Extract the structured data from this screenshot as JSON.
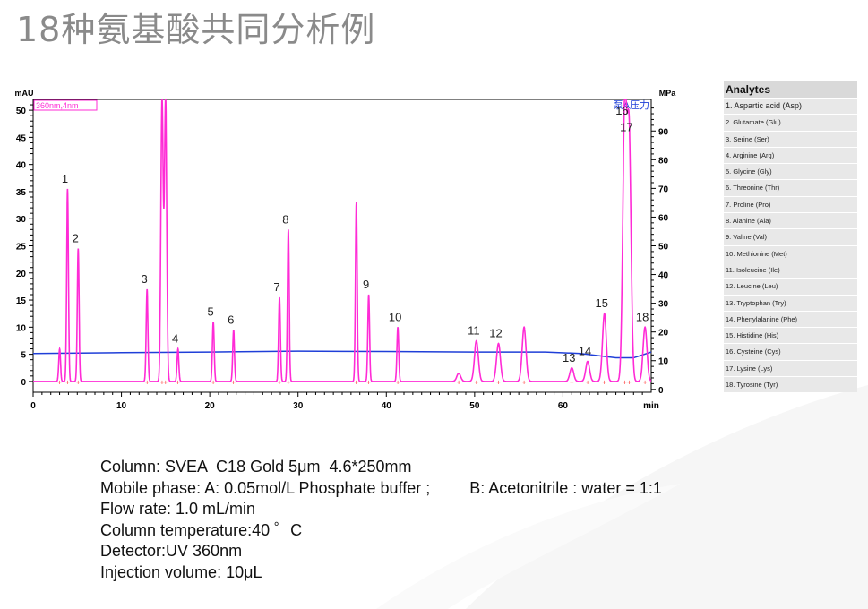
{
  "page": {
    "title": "18种氨基酸共同分析例"
  },
  "colors": {
    "signal": "#ff2bd6",
    "pressure": "#1f3fd8",
    "axis": "#000000",
    "title": "#8a8a8a",
    "legend_header": "#d9d9d9",
    "legend_row": "#e8e8e8"
  },
  "chart_data": {
    "type": "line",
    "signal_label": "360nm,4nm",
    "pressure_label": "泵A压力",
    "y_left": {
      "unit": "mAU",
      "range": [
        -2,
        52
      ],
      "ticks": [
        0,
        5,
        10,
        15,
        20,
        25,
        30,
        35,
        40,
        45,
        50
      ]
    },
    "y_right": {
      "unit": "MPa",
      "range": [
        -1,
        101
      ],
      "ticks": [
        0,
        10,
        20,
        30,
        40,
        50,
        60,
        70,
        80,
        90
      ]
    },
    "x": {
      "unit": "min",
      "range": [
        0,
        70
      ],
      "ticks": [
        0,
        10,
        20,
        30,
        40,
        50,
        60
      ]
    },
    "peaks": [
      {
        "id": "",
        "t": 3.0,
        "h": 6
      },
      {
        "id": "1",
        "t": 3.9,
        "h": 35.5
      },
      {
        "id": "2",
        "t": 5.1,
        "h": 24.5
      },
      {
        "id": "3",
        "t": 12.9,
        "h": 17
      },
      {
        "id": "",
        "t": 14.6,
        "h": 52
      },
      {
        "id": "",
        "t": 15.0,
        "h": 52
      },
      {
        "id": "4",
        "t": 16.4,
        "h": 6
      },
      {
        "id": "5",
        "t": 20.4,
        "h": 11
      },
      {
        "id": "6",
        "t": 22.7,
        "h": 9.5
      },
      {
        "id": "7",
        "t": 27.9,
        "h": 15.5
      },
      {
        "id": "8",
        "t": 28.9,
        "h": 28
      },
      {
        "id": "",
        "t": 36.6,
        "h": 33
      },
      {
        "id": "9",
        "t": 38.0,
        "h": 16
      },
      {
        "id": "10",
        "t": 41.3,
        "h": 10
      },
      {
        "id": "",
        "t": 48.2,
        "h": 1.5
      },
      {
        "id": "11",
        "t": 50.2,
        "h": 7.5
      },
      {
        "id": "12",
        "t": 52.7,
        "h": 7
      },
      {
        "id": "",
        "t": 55.6,
        "h": 10
      },
      {
        "id": "13",
        "t": 61.0,
        "h": 2.5
      },
      {
        "id": "14",
        "t": 62.8,
        "h": 3.7
      },
      {
        "id": "15",
        "t": 64.7,
        "h": 12.5
      },
      {
        "id": "16",
        "t": 67.0,
        "h": 50
      },
      {
        "id": "17",
        "t": 67.5,
        "h": 45
      },
      {
        "id": "18",
        "t": 69.3,
        "h": 10
      }
    ],
    "pressure": {
      "x": [
        0,
        10,
        20,
        30,
        40,
        50,
        58,
        62,
        66,
        68,
        70
      ],
      "y": [
        12.5,
        12.8,
        13.0,
        13.3,
        13.2,
        13.0,
        13.0,
        12.5,
        11.0,
        11.0,
        13.0
      ]
    }
  },
  "legend": {
    "header": "Analytes",
    "items": [
      "1. Aspartic acid (Asp)",
      "2. Glutamate (Glu)",
      "3. Serine (Ser)",
      "4. Arginine (Arg)",
      "5. Glycine (Gly)",
      "6. Threonine (Thr)",
      "7. Proline (Pro)",
      "8. Alanine (Ala)",
      "9. Valine (Val)",
      "10. Methionine (Met)",
      "11. Isoleucine (Ile)",
      "12. Leucine (Leu)",
      "13. Tryptophan (Try)",
      "14. Phenylalanine (Phe)",
      "15. Histidine (His)",
      "16. Cysteine (Cys)",
      "17. Lysine (Lys)",
      "18. Tyrosine (Tyr)"
    ]
  },
  "conditions": {
    "column": "Column: SVEA  C18 Gold 5μm  4.6*250mm",
    "mobile_phase_a": "Mobile phase: A: 0.05mol/L Phosphate buffer ;",
    "mobile_phase_b": "B: Acetonitrile : water = 1:1",
    "flow_rate": "Flow rate: 1.0 mL/min",
    "temperature": "Column temperature:40 ゜C",
    "detector": "Detector:UV 360nm",
    "injection": "Injection volume: 10μL"
  }
}
